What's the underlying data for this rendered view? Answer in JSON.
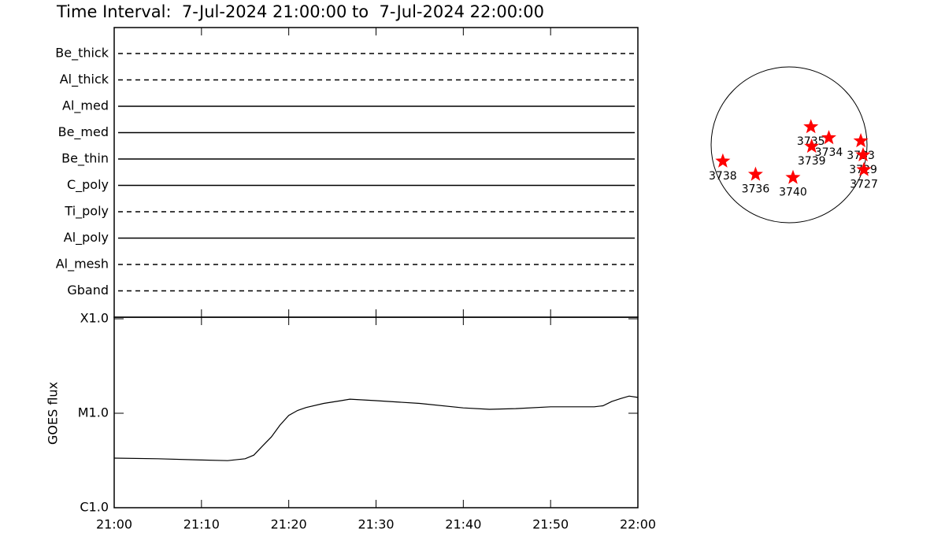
{
  "title": "Time Interval:  7-Jul-2024 21:00:00 to  7-Jul-2024 22:00:00",
  "chart_data": [
    {
      "type": "timeline",
      "categories": [
        "Be_thick",
        "Al_thick",
        "Al_med",
        "Be_med",
        "Be_thin",
        "C_poly",
        "Ti_poly",
        "Al_poly",
        "Al_mesh",
        "Gband"
      ],
      "line_styles": [
        "dashed",
        "dashed",
        "solid",
        "solid",
        "solid",
        "solid",
        "dashed",
        "solid",
        "dashed",
        "dashed"
      ],
      "color": "#000000"
    },
    {
      "type": "line",
      "ylabel": "GOES flux",
      "log_scale": true,
      "color": "#000000",
      "x": [
        "21:00",
        "21:05",
        "21:10",
        "21:13",
        "21:15",
        "21:16",
        "21:17",
        "21:18",
        "21:19",
        "21:20",
        "21:21",
        "21:22",
        "21:24",
        "21:26",
        "21:27",
        "21:30",
        "21:35",
        "21:40",
        "21:43",
        "21:46",
        "21:50",
        "21:55",
        "21:56",
        "21:57",
        "21:58",
        "21:59",
        "22:00"
      ],
      "values": [
        3.35e-06,
        3.3e-06,
        3.2e-06,
        3.15e-06,
        3.3e-06,
        3.6e-06,
        4.5e-06,
        5.6e-06,
        7.5e-06,
        9.5e-06,
        1.07e-05,
        1.15e-05,
        1.27e-05,
        1.36e-05,
        1.41e-05,
        1.36e-05,
        1.27e-05,
        1.14e-05,
        1.1e-05,
        1.12e-05,
        1.17e-05,
        1.17e-05,
        1.2e-05,
        1.33e-05,
        1.43e-05,
        1.52e-05,
        1.47e-05
      ],
      "xlim": [
        "21:00",
        "22:00"
      ],
      "xticks": [
        "21:00",
        "21:10",
        "21:20",
        "21:30",
        "21:40",
        "21:50",
        "22:00"
      ],
      "ylim": [
        1e-06,
        0.0001
      ],
      "yticks": [
        {
          "value": 1e-06,
          "label": "C1.0"
        },
        {
          "value": 1e-05,
          "label": "M1.0"
        },
        {
          "value": 0.0001,
          "label": "X1.0"
        }
      ]
    },
    {
      "type": "map",
      "color": "#ff0000",
      "xlim": [
        -1,
        1
      ],
      "ylim": [
        -1,
        1
      ],
      "labels": [
        "3735",
        "3734",
        "3739",
        "3733",
        "3729",
        "3727",
        "3738",
        "3736",
        "3740"
      ],
      "x": [
        0.28,
        0.51,
        0.29,
        0.92,
        0.95,
        0.96,
        -0.85,
        -0.43,
        0.05
      ],
      "y": [
        0.23,
        0.09,
        -0.02,
        0.05,
        -0.13,
        -0.32,
        -0.21,
        -0.38,
        -0.42
      ]
    }
  ]
}
